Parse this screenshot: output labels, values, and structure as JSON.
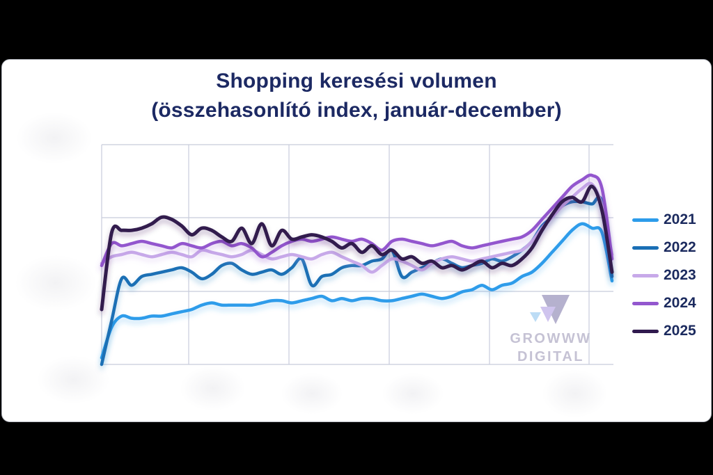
{
  "window": {
    "background_color": "#000000",
    "card_background_color": "#ffffff"
  },
  "title": {
    "line1": "Shopping keresési volumen",
    "line2": "(összehasonlító index, január-december)",
    "color": "#1c2963"
  },
  "legend": {
    "position": "right",
    "text_color": "#1b2a5e",
    "items": [
      {
        "label": "2021",
        "color": "#2d9cea"
      },
      {
        "label": "2022",
        "color": "#1a6fb5"
      },
      {
        "label": "2023",
        "color": "#c7a9e9"
      },
      {
        "label": "2024",
        "color": "#9357ce"
      },
      {
        "label": "2025",
        "color": "#301a4e"
      }
    ]
  },
  "watermark": {
    "line1": "GROWWW",
    "line2": "DIGITAL",
    "text_color": "#c5c2d4",
    "triangle_colors": [
      "#bcdcf5",
      "#cfc4ee",
      "#b5b1ce"
    ]
  },
  "chart_data": {
    "type": "line",
    "title": "Shopping keresési volumen (összehasonlító index, január-december)",
    "xlabel": "",
    "ylabel": "",
    "x_unit": "hét (január–december)",
    "x_range": [
      1,
      52
    ],
    "y_axis": {
      "tick_labels_visible": false,
      "scale_note": "index estimated from gridlines: bottom gridline = 0, top gridline = 100",
      "ylim": [
        0,
        100
      ]
    },
    "grid": {
      "visible": true,
      "vertical_lines": 6,
      "horizontal_lines": 4,
      "color": "#c7ccdb"
    },
    "legend_position": "right",
    "series": [
      {
        "name": "2021",
        "color": "#2d9cea",
        "values": [
          3,
          17,
          22,
          21,
          21,
          22,
          22,
          23,
          24,
          25,
          27,
          28,
          27,
          27,
          27,
          27,
          28,
          29,
          29,
          28,
          29,
          30,
          31,
          29,
          30,
          29,
          30,
          30,
          29,
          29,
          30,
          31,
          32,
          31,
          30,
          31,
          33,
          34,
          36,
          34,
          36,
          37,
          40,
          42,
          46,
          51,
          56,
          61,
          64,
          62,
          60,
          38
        ]
      },
      {
        "name": "2022",
        "color": "#1a6fb5",
        "values": [
          0,
          20,
          39,
          36,
          40,
          41,
          42,
          43,
          44,
          42,
          39,
          41,
          45,
          46,
          43,
          41,
          42,
          43,
          41,
          44,
          48,
          36,
          40,
          41,
          44,
          45,
          45,
          47,
          48,
          52,
          40,
          42,
          44,
          46,
          48,
          46,
          44,
          45,
          46,
          48,
          47,
          49,
          52,
          56,
          63,
          67,
          72,
          74,
          74,
          73,
          74,
          40
        ]
      },
      {
        "name": "2023",
        "color": "#c7a9e9",
        "values": [
          46,
          49,
          50,
          51,
          50,
          49,
          50,
          51,
          50,
          49,
          52,
          51,
          50,
          49,
          50,
          52,
          50,
          48,
          49,
          50,
          49,
          48,
          50,
          51,
          49,
          47,
          45,
          42,
          45,
          48,
          47,
          45,
          43,
          46,
          48,
          49,
          48,
          47,
          48,
          49,
          50,
          51,
          52,
          56,
          62,
          67,
          72,
          76,
          80,
          82,
          72,
          50
        ]
      },
      {
        "name": "2024",
        "color": "#9357ce",
        "values": [
          45,
          55,
          54,
          55,
          56,
          55,
          54,
          53,
          55,
          54,
          53,
          55,
          56,
          54,
          55,
          53,
          49,
          51,
          54,
          56,
          57,
          56,
          57,
          58,
          57,
          56,
          57,
          55,
          52,
          56,
          57,
          56,
          55,
          54,
          55,
          56,
          54,
          53,
          54,
          55,
          56,
          57,
          58,
          61,
          66,
          71,
          76,
          81,
          84,
          86,
          80,
          48
        ]
      },
      {
        "name": "2025",
        "color": "#301a4e",
        "values": [
          25,
          60,
          61,
          61,
          62,
          64,
          67,
          66,
          63,
          59,
          62,
          61,
          58,
          56,
          62,
          55,
          64,
          54,
          61,
          57,
          58,
          59,
          58,
          56,
          53,
          55,
          51,
          54,
          50,
          52,
          48,
          49,
          46,
          47,
          44,
          45,
          43,
          45,
          47,
          44,
          46,
          45,
          48,
          53,
          61,
          68,
          74,
          76,
          74,
          81,
          70,
          42
        ]
      }
    ]
  }
}
